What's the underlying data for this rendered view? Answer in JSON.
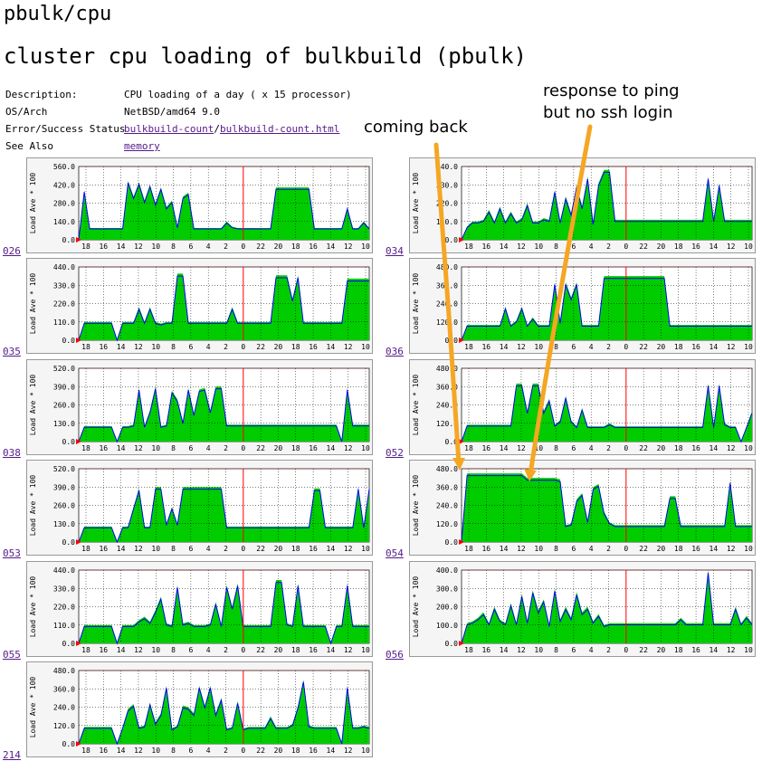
{
  "page": {
    "title": "pbulk/cpu",
    "subtitle": "cluster cpu loading of bulkbuild (pbulk)"
  },
  "meta": {
    "description_label": "Description:",
    "description_value": "CPU loading of a day ( x 15 processor)",
    "osarch_label": "OS/Arch",
    "osarch_value": "NetBSD/amd64 9.0",
    "status_label": "Error/Success Status",
    "status_link1": "bulkbuild-count",
    "status_sep": "/",
    "status_link2": "bulkbuild-count.html",
    "seealso_label": "See Also",
    "seealso_link": "memory"
  },
  "annotations": {
    "coming_back": "coming back",
    "ping_line1": "response to ping",
    "ping_line2": "but no ssh login"
  },
  "colors": {
    "area": "#00cc00",
    "line": "#0000ff",
    "now_marker": "#ff0000",
    "arrow": "#f5a623",
    "panel_bg": "#f5f5f5",
    "plot_bg": "#ffffff"
  },
  "chart_data": [
    {
      "host": "026",
      "type": "area",
      "ylabel": "Load Ave * 100",
      "yticks": [
        "0.0",
        "140.0",
        "280.0",
        "420.0",
        "560.0"
      ],
      "ymax": 560,
      "x_ticks": [
        "18",
        "16",
        "14",
        "12",
        "10",
        "8",
        "6",
        "4",
        "2",
        "0",
        "22",
        "20",
        "18",
        "16",
        "14",
        "12",
        "10"
      ],
      "values": [
        0,
        380,
        90,
        90,
        90,
        90,
        90,
        90,
        90,
        450,
        330,
        440,
        300,
        420,
        280,
        400,
        250,
        300,
        100,
        330,
        360,
        90,
        90,
        90,
        90,
        90,
        90,
        140,
        100,
        90,
        90,
        90,
        90,
        90,
        90,
        90,
        400,
        400,
        400,
        400,
        400,
        400,
        400,
        90,
        90,
        90,
        90,
        90,
        90,
        250,
        90,
        90,
        140,
        90
      ]
    },
    {
      "host": "034",
      "type": "area",
      "ylabel": "Load Ave * 100",
      "yticks": [
        "0.0",
        "110.0",
        "220.0",
        "330.0",
        "440.0"
      ],
      "ymax": 440,
      "x_ticks": [
        "18",
        "16",
        "14",
        "12",
        "10",
        "8",
        "6",
        "4",
        "2",
        "0",
        "22",
        "20",
        "18",
        "16",
        "14",
        "12",
        "10"
      ],
      "values": [
        0,
        80,
        110,
        110,
        120,
        180,
        110,
        200,
        110,
        170,
        110,
        130,
        220,
        110,
        110,
        130,
        120,
        300,
        110,
        260,
        160,
        330,
        200,
        380,
        100,
        340,
        420,
        420,
        120,
        120,
        120,
        120,
        120,
        120,
        120,
        120,
        120,
        120,
        120,
        120,
        120,
        120,
        120,
        120,
        120,
        380,
        120,
        340,
        120,
        120,
        120,
        120,
        120,
        120
      ]
    },
    {
      "host": "035",
      "type": "area",
      "ylabel": "Load Ave * 100",
      "yticks": [
        "0.0",
        "110.0",
        "220.0",
        "330.0",
        "440.0"
      ],
      "ymax": 440,
      "x_ticks": [
        "18",
        "16",
        "14",
        "12",
        "10",
        "8",
        "6",
        "4",
        "2",
        "0",
        "22",
        "20",
        "18",
        "16",
        "14",
        "12",
        "10"
      ],
      "values": [
        0,
        110,
        110,
        110,
        110,
        110,
        110,
        0,
        110,
        110,
        110,
        200,
        110,
        200,
        110,
        100,
        110,
        110,
        400,
        400,
        110,
        110,
        110,
        110,
        110,
        110,
        110,
        110,
        200,
        110,
        110,
        110,
        110,
        110,
        110,
        110,
        390,
        390,
        390,
        250,
        390,
        110,
        110,
        110,
        110,
        110,
        110,
        110,
        110,
        370,
        370,
        370,
        370,
        370
      ]
    },
    {
      "host": "036",
      "type": "area",
      "ylabel": "Load Ave * 100",
      "yticks": [
        "0.0",
        "120.0",
        "240.0",
        "360.0",
        "480.0"
      ],
      "ymax": 480,
      "x_ticks": [
        "18",
        "16",
        "14",
        "12",
        "10",
        "8",
        "6",
        "4",
        "2",
        "0",
        "22",
        "20",
        "18",
        "16",
        "14",
        "12",
        "10"
      ],
      "values": [
        0,
        100,
        100,
        100,
        100,
        100,
        100,
        100,
        220,
        100,
        130,
        220,
        100,
        150,
        100,
        100,
        100,
        380,
        120,
        380,
        280,
        380,
        100,
        100,
        100,
        100,
        420,
        420,
        420,
        420,
        420,
        420,
        420,
        420,
        420,
        420,
        420,
        420,
        100,
        100,
        100,
        100,
        100,
        100,
        100,
        100,
        100,
        100,
        100,
        100,
        100,
        100,
        100,
        100
      ]
    },
    {
      "host": "038",
      "type": "area",
      "ylabel": "Load Ave * 100",
      "yticks": [
        "0.0",
        "130.0",
        "260.0",
        "390.0",
        "520.0"
      ],
      "ymax": 520,
      "x_ticks": [
        "18",
        "16",
        "14",
        "12",
        "10",
        "8",
        "6",
        "4",
        "2",
        "0",
        "22",
        "20",
        "18",
        "16",
        "14",
        "12",
        "10"
      ],
      "values": [
        0,
        110,
        110,
        110,
        110,
        110,
        110,
        0,
        110,
        110,
        120,
        380,
        110,
        220,
        390,
        110,
        120,
        360,
        300,
        140,
        380,
        200,
        370,
        380,
        220,
        390,
        390,
        120,
        120,
        120,
        120,
        120,
        120,
        120,
        120,
        120,
        120,
        120,
        120,
        120,
        120,
        120,
        120,
        120,
        120,
        120,
        120,
        120,
        0,
        380,
        120,
        120,
        120,
        120
      ]
    },
    {
      "host": "052",
      "type": "area",
      "ylabel": "Load Ave * 100",
      "yticks": [
        "0.0",
        "120.0",
        "240.0",
        "360.0",
        "480.0"
      ],
      "ymax": 480,
      "x_ticks": [
        "18",
        "16",
        "14",
        "12",
        "10",
        "8",
        "6",
        "4",
        "2",
        "0",
        "22",
        "20",
        "18",
        "16",
        "14",
        "12",
        "10"
      ],
      "values": [
        0,
        110,
        110,
        110,
        110,
        110,
        110,
        110,
        110,
        110,
        380,
        380,
        200,
        380,
        380,
        200,
        280,
        110,
        140,
        300,
        140,
        100,
        220,
        100,
        100,
        100,
        100,
        120,
        100,
        100,
        100,
        100,
        100,
        100,
        100,
        100,
        100,
        100,
        100,
        100,
        100,
        100,
        100,
        100,
        100,
        380,
        100,
        380,
        120,
        100,
        100,
        0,
        100,
        200
      ]
    },
    {
      "host": "053",
      "type": "area",
      "ylabel": "Load Ave * 100",
      "yticks": [
        "0.0",
        "130.0",
        "260.0",
        "390.0",
        "520.0"
      ],
      "ymax": 520,
      "x_ticks": [
        "18",
        "16",
        "14",
        "12",
        "10",
        "8",
        "6",
        "4",
        "2",
        "0",
        "22",
        "20",
        "18",
        "16",
        "14",
        "12",
        "10"
      ],
      "values": [
        0,
        110,
        110,
        110,
        110,
        110,
        110,
        0,
        110,
        110,
        250,
        380,
        110,
        110,
        390,
        390,
        130,
        250,
        130,
        390,
        390,
        390,
        390,
        390,
        390,
        390,
        390,
        110,
        110,
        110,
        110,
        110,
        110,
        110,
        110,
        110,
        110,
        110,
        110,
        110,
        110,
        110,
        110,
        380,
        380,
        110,
        110,
        110,
        110,
        110,
        110,
        390,
        110,
        390
      ]
    },
    {
      "host": "054",
      "type": "area",
      "ylabel": "Load Ave * 100",
      "yticks": [
        "0.0",
        "120.0",
        "240.0",
        "360.0",
        "480.0"
      ],
      "ymax": 480,
      "x_ticks": [
        "18",
        "16",
        "14",
        "12",
        "10",
        "8",
        "6",
        "4",
        "2",
        "0",
        "22",
        "20",
        "18",
        "16",
        "14",
        "12",
        "10"
      ],
      "values": [
        0,
        450,
        450,
        450,
        450,
        450,
        450,
        450,
        450,
        450,
        450,
        450,
        420,
        420,
        420,
        420,
        420,
        420,
        410,
        110,
        120,
        280,
        320,
        140,
        360,
        380,
        200,
        130,
        110,
        110,
        110,
        110,
        110,
        110,
        110,
        110,
        110,
        110,
        300,
        300,
        110,
        110,
        110,
        110,
        110,
        110,
        110,
        110,
        110,
        400,
        110,
        110,
        110,
        110
      ]
    },
    {
      "host": "055",
      "type": "area",
      "ylabel": "Load Ave * 100",
      "yticks": [
        "0.0",
        "110.0",
        "220.0",
        "330.0",
        "440.0"
      ],
      "ymax": 440,
      "x_ticks": [
        "18",
        "16",
        "14",
        "12",
        "10",
        "8",
        "6",
        "4",
        "2",
        "0",
        "22",
        "20",
        "18",
        "16",
        "14",
        "12",
        "10"
      ],
      "values": [
        0,
        110,
        110,
        110,
        110,
        110,
        110,
        0,
        110,
        110,
        110,
        140,
        160,
        130,
        200,
        280,
        120,
        110,
        350,
        120,
        130,
        110,
        110,
        110,
        120,
        250,
        110,
        350,
        220,
        360,
        110,
        110,
        110,
        110,
        110,
        110,
        380,
        380,
        120,
        110,
        360,
        110,
        110,
        110,
        110,
        110,
        0,
        110,
        110,
        360,
        110,
        110,
        110,
        110
      ]
    },
    {
      "host": "056",
      "type": "area",
      "ylabel": "Load Ave * 100",
      "yticks": [
        "0.0",
        "100.0",
        "200.0",
        "300.0",
        "400.0"
      ],
      "ymax": 400,
      "x_ticks": [
        "18",
        "16",
        "14",
        "12",
        "10",
        "8",
        "6",
        "4",
        "2",
        "0",
        "22",
        "20",
        "18",
        "16",
        "14",
        "12",
        "10"
      ],
      "values": [
        0,
        110,
        120,
        140,
        170,
        110,
        200,
        130,
        110,
        220,
        110,
        270,
        120,
        290,
        180,
        240,
        100,
        300,
        130,
        200,
        140,
        280,
        170,
        200,
        120,
        160,
        100,
        110,
        110,
        110,
        110,
        110,
        110,
        110,
        110,
        110,
        110,
        110,
        110,
        110,
        140,
        110,
        110,
        110,
        110,
        400,
        110,
        110,
        110,
        110,
        200,
        110,
        150,
        110
      ]
    },
    {
      "host": "214",
      "type": "area",
      "ylabel": "Load Ave * 100",
      "yticks": [
        "0.0",
        "120.0",
        "240.0",
        "360.0",
        "480.0"
      ],
      "ymax": 480,
      "x_ticks": [
        "18",
        "16",
        "14",
        "12",
        "10",
        "8",
        "6",
        "4",
        "2",
        "0",
        "22",
        "20",
        "18",
        "16",
        "14",
        "12",
        "10"
      ],
      "values": [
        0,
        110,
        110,
        110,
        110,
        110,
        110,
        0,
        110,
        230,
        260,
        110,
        120,
        270,
        140,
        200,
        380,
        100,
        120,
        250,
        240,
        200,
        380,
        250,
        380,
        200,
        300,
        100,
        110,
        280,
        100,
        110,
        110,
        110,
        110,
        180,
        110,
        110,
        110,
        130,
        250,
        420,
        120,
        110,
        110,
        110,
        110,
        110,
        0,
        380,
        110,
        110,
        120,
        110
      ]
    }
  ]
}
